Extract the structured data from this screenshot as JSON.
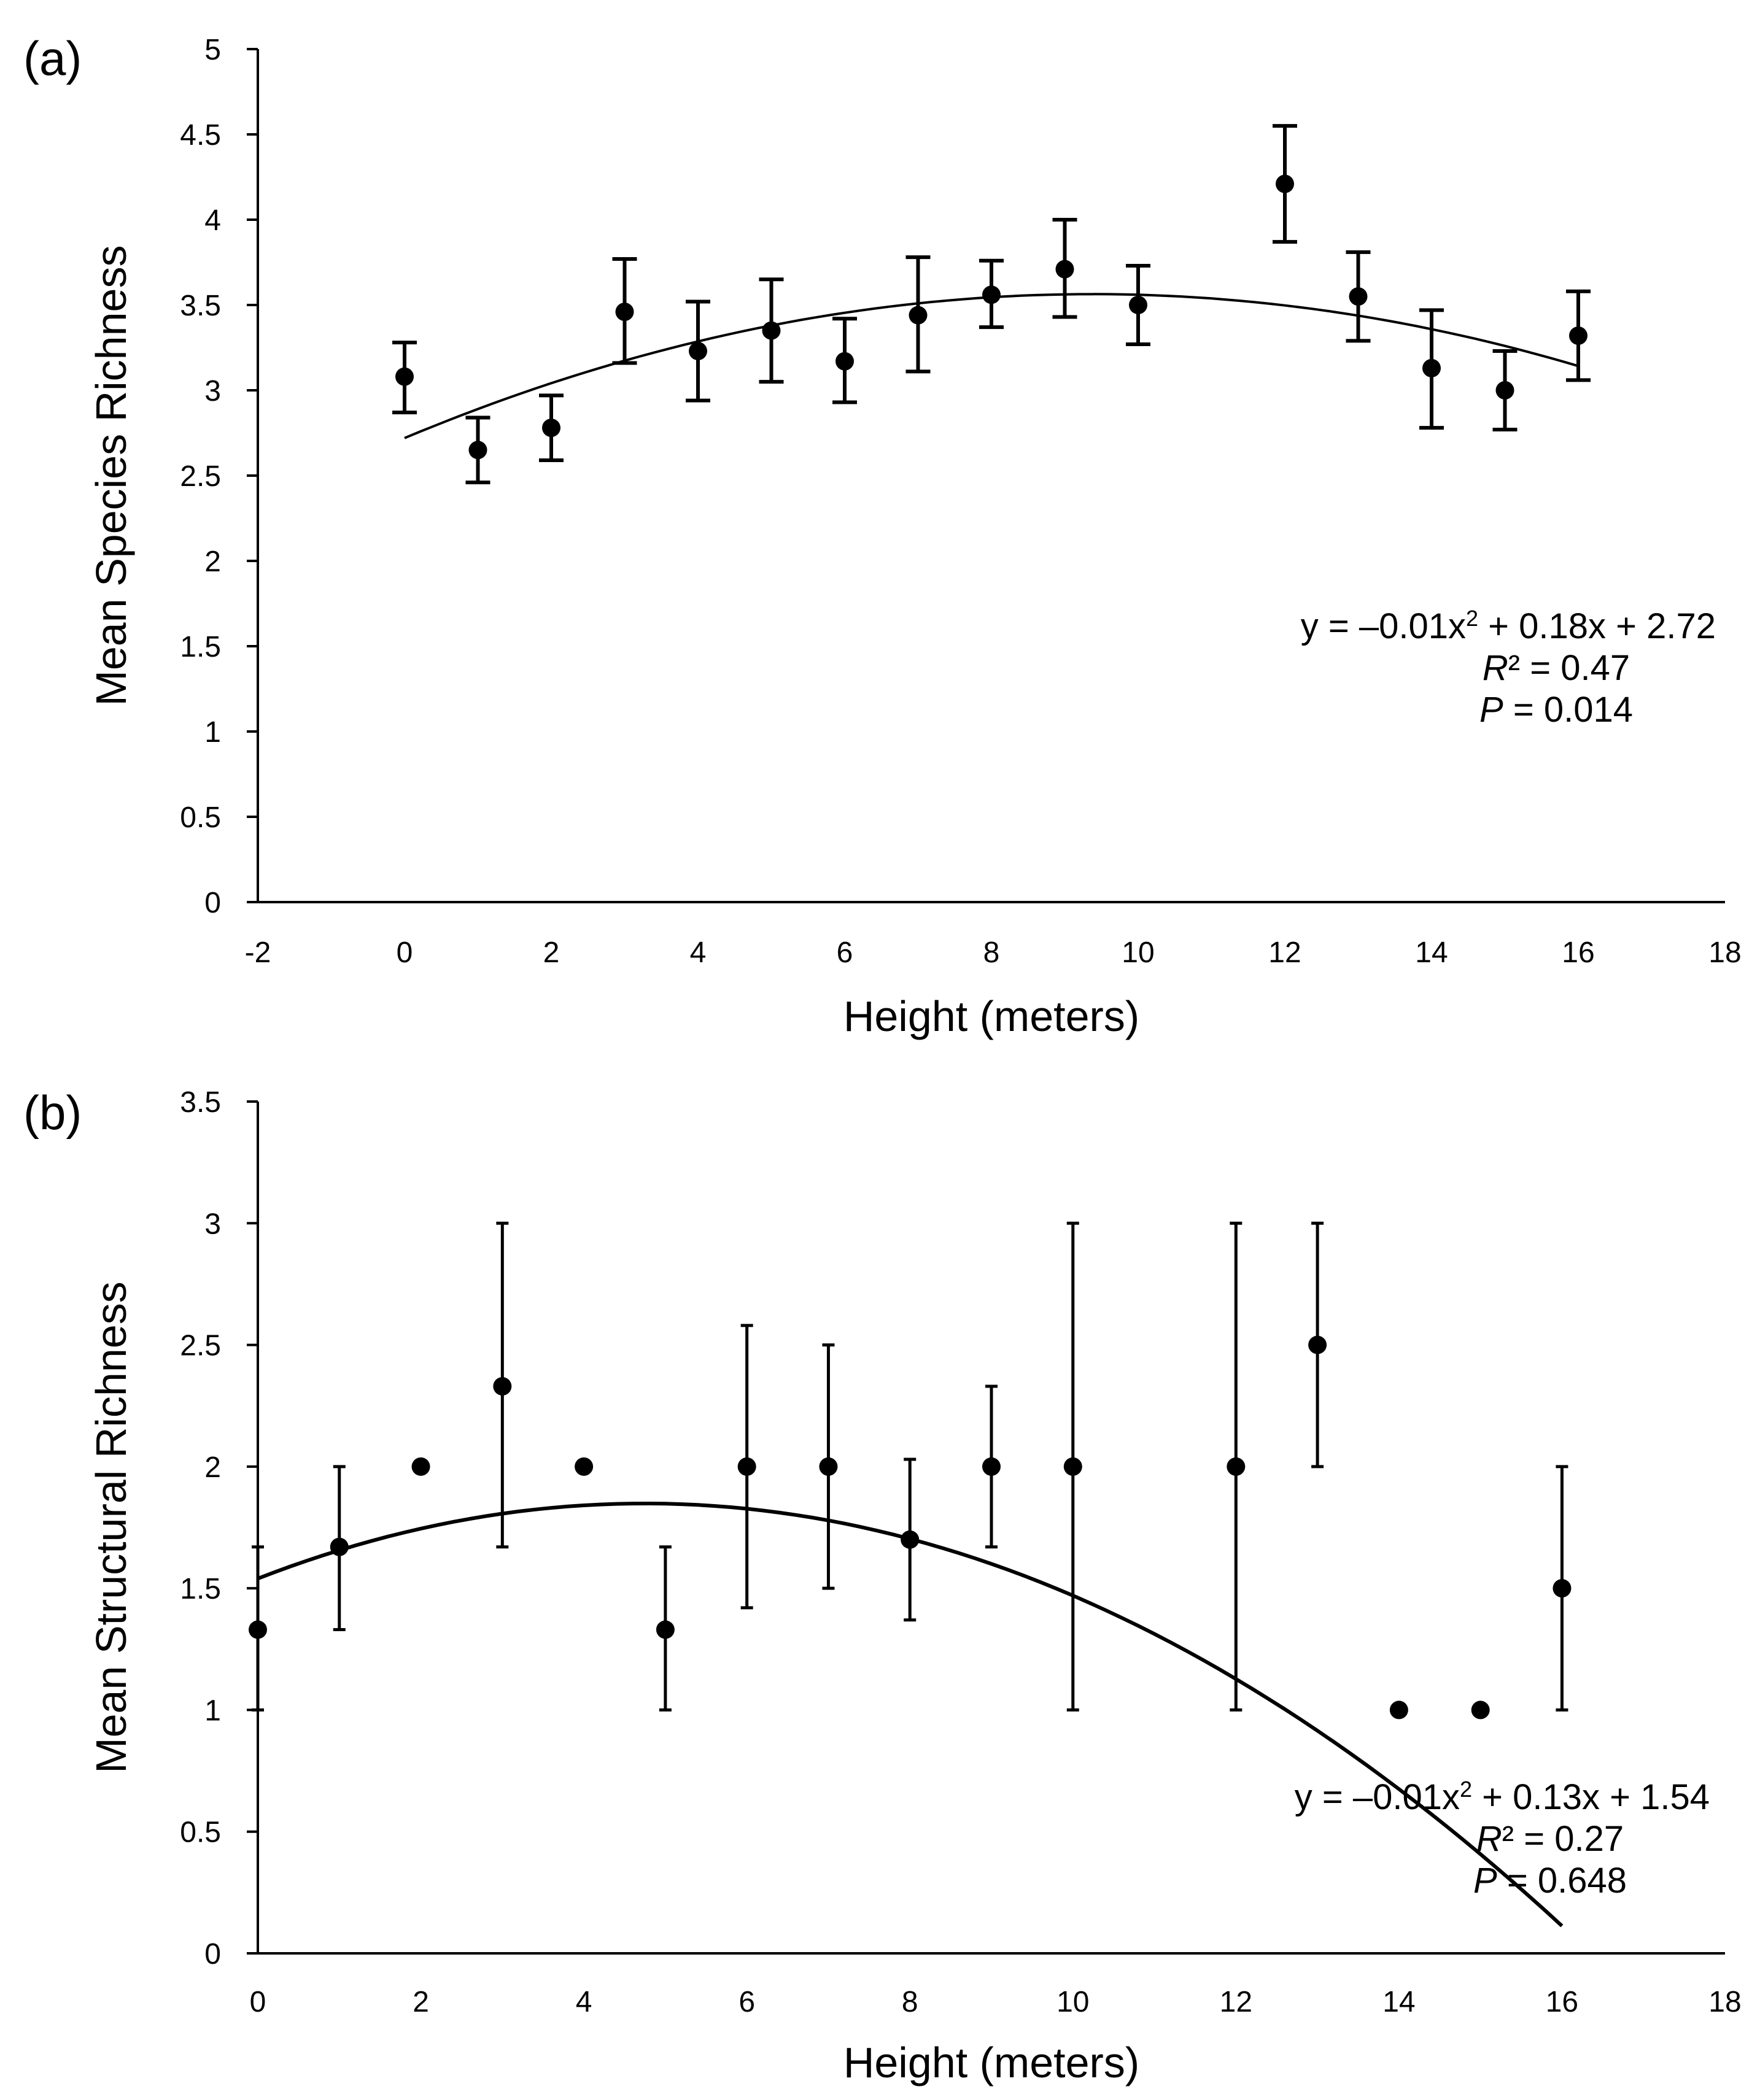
{
  "chart_data": [
    {
      "type": "scatter",
      "panel_label": "(a)",
      "xlabel": "Height (meters)",
      "ylabel": "Mean Species Richness",
      "xlim": [
        -2,
        18
      ],
      "ylim": [
        0,
        5
      ],
      "xticks": [
        -2,
        0,
        2,
        4,
        6,
        8,
        10,
        12,
        14,
        16,
        18
      ],
      "yticks": [
        0,
        0.5,
        1,
        1.5,
        2,
        2.5,
        3,
        3.5,
        4,
        4.5,
        5
      ],
      "xtick_labels": [
        "-2",
        "0",
        "2",
        "4",
        "6",
        "8",
        "10",
        "12",
        "14",
        "16",
        "18"
      ],
      "ytick_labels": [
        "0",
        "0.5",
        "1",
        "1.5",
        "2",
        "2.5",
        "3",
        "3.5",
        "4",
        "4.5",
        "5"
      ],
      "points": [
        {
          "x": 0,
          "y": 3.08,
          "low": 2.87,
          "high": 3.28
        },
        {
          "x": 1,
          "y": 2.65,
          "low": 2.46,
          "high": 2.84
        },
        {
          "x": 2,
          "y": 2.78,
          "low": 2.59,
          "high": 2.97
        },
        {
          "x": 3,
          "y": 3.46,
          "low": 3.16,
          "high": 3.77
        },
        {
          "x": 4,
          "y": 3.23,
          "low": 2.94,
          "high": 3.52
        },
        {
          "x": 5,
          "y": 3.35,
          "low": 3.05,
          "high": 3.65
        },
        {
          "x": 6,
          "y": 3.17,
          "low": 2.93,
          "high": 3.42
        },
        {
          "x": 7,
          "y": 3.44,
          "low": 3.11,
          "high": 3.78
        },
        {
          "x": 8,
          "y": 3.56,
          "low": 3.37,
          "high": 3.76
        },
        {
          "x": 9,
          "y": 3.71,
          "low": 3.43,
          "high": 4.0
        },
        {
          "x": 10,
          "y": 3.5,
          "low": 3.27,
          "high": 3.73
        },
        {
          "x": 12,
          "y": 4.21,
          "low": 3.87,
          "high": 4.55
        },
        {
          "x": 13,
          "y": 3.55,
          "low": 3.29,
          "high": 3.81
        },
        {
          "x": 14,
          "y": 3.13,
          "low": 2.78,
          "high": 3.47
        },
        {
          "x": 15,
          "y": 3.0,
          "low": 2.77,
          "high": 3.23
        },
        {
          "x": 16,
          "y": 3.32,
          "low": 3.06,
          "high": 3.58
        }
      ],
      "trendline": {
        "a": -0.0096,
        "b": 0.18,
        "c": 2.72,
        "x_start": 0,
        "x_end": 16
      },
      "equation": {
        "prefix": "y = –0.01x",
        "exponent": "2",
        "suffix": " + 0.18x + 2.72",
        "r2_symbol": "R",
        "r2_text": "² = 0.47",
        "p_symbol": "P",
        "p_text": " = 0.014"
      },
      "errorbar_caps": true
    },
    {
      "type": "scatter",
      "panel_label": "(b)",
      "xlabel": "Height (meters)",
      "ylabel": "Mean Structural Richness",
      "xlim": [
        0,
        18
      ],
      "ylim": [
        0,
        3.5
      ],
      "xticks": [
        0,
        2,
        4,
        6,
        8,
        10,
        12,
        14,
        16,
        18
      ],
      "yticks": [
        0,
        0.5,
        1,
        1.5,
        2,
        2.5,
        3,
        3.5
      ],
      "xtick_labels": [
        "0",
        "2",
        "4",
        "6",
        "8",
        "10",
        "12",
        "14",
        "16",
        "18"
      ],
      "ytick_labels": [
        "0",
        "0.5",
        "1",
        "1.5",
        "2",
        "2.5",
        "3",
        "3.5"
      ],
      "points": [
        {
          "x": 0,
          "y": 1.33,
          "low": 1.0,
          "high": 1.67
        },
        {
          "x": 1,
          "y": 1.67,
          "low": 1.33,
          "high": 2.0
        },
        {
          "x": 2,
          "y": 2.0,
          "low": null,
          "high": null
        },
        {
          "x": 3,
          "y": 2.33,
          "low": 1.67,
          "high": 3.0
        },
        {
          "x": 4,
          "y": 2.0,
          "low": null,
          "high": null
        },
        {
          "x": 5,
          "y": 1.33,
          "low": 1.0,
          "high": 1.67
        },
        {
          "x": 6,
          "y": 2.0,
          "low": 1.42,
          "high": 2.58
        },
        {
          "x": 7,
          "y": 2.0,
          "low": 1.5,
          "high": 2.5
        },
        {
          "x": 8,
          "y": 1.7,
          "low": 1.37,
          "high": 2.03
        },
        {
          "x": 9,
          "y": 2.0,
          "low": 1.67,
          "high": 2.33
        },
        {
          "x": 10,
          "y": 2.0,
          "low": 1.0,
          "high": 3.0
        },
        {
          "x": 12,
          "y": 2.0,
          "low": 1.0,
          "high": 3.0
        },
        {
          "x": 13,
          "y": 2.5,
          "low": 2.0,
          "high": 3.0
        },
        {
          "x": 14,
          "y": 1.0,
          "low": null,
          "high": null
        },
        {
          "x": 15,
          "y": 1.0,
          "low": null,
          "high": null
        },
        {
          "x": 16,
          "y": 1.5,
          "low": 1.0,
          "high": 2.0
        }
      ],
      "trendline": {
        "a": -0.0137,
        "b": 0.13,
        "c": 1.54,
        "x_start": 0,
        "x_end": 16
      },
      "equation": {
        "prefix": "y = –0.01x",
        "exponent": "2",
        "suffix": " + 0.13x + 1.54",
        "r2_symbol": "R",
        "r2_text": "² = 0.27",
        "p_symbol": "P",
        "p_text": " = 0.648"
      },
      "errorbar_caps": false
    }
  ]
}
